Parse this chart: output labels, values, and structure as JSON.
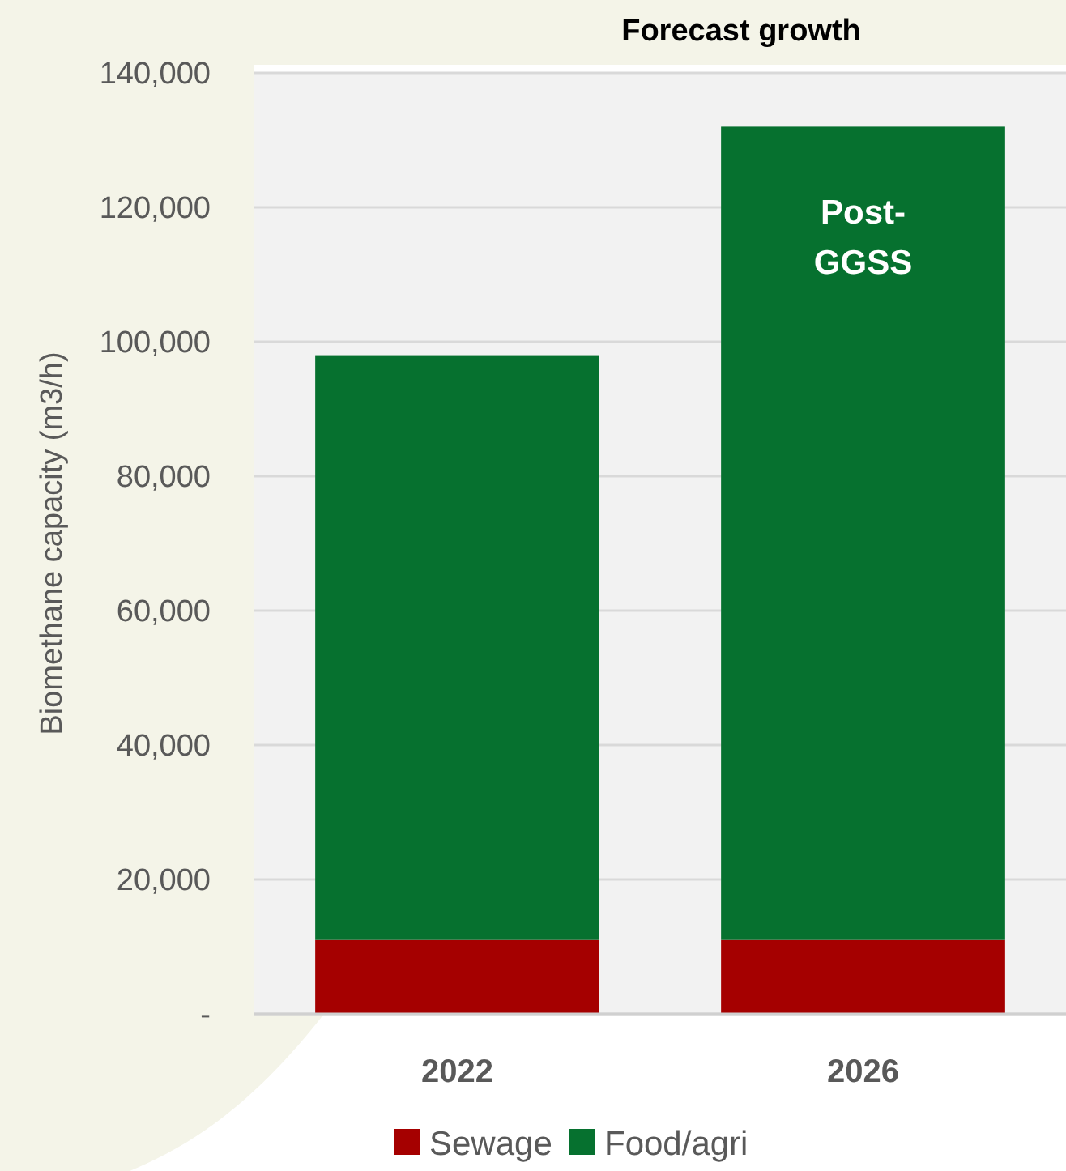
{
  "chart_data": {
    "type": "bar",
    "title": "Forecast growth",
    "ylabel": "Biomethane capacity (m3/h)",
    "categories": [
      "2022",
      "2026"
    ],
    "stacked": true,
    "series": [
      {
        "name": "Sewage",
        "color": "#a50000",
        "values": [
          11000,
          11000
        ]
      },
      {
        "name": "Food/agri",
        "color": "#06712f",
        "values": [
          87000,
          121000
        ]
      }
    ],
    "ylim": [
      0,
      140000
    ],
    "yticks": [
      {
        "value": 0,
        "label": "-"
      },
      {
        "value": 20000,
        "label": "20,000"
      },
      {
        "value": 40000,
        "label": "40,000"
      },
      {
        "value": 60000,
        "label": "60,000"
      },
      {
        "value": 80000,
        "label": "80,000"
      },
      {
        "value": 100000,
        "label": "100,000"
      },
      {
        "value": 120000,
        "label": "120,000"
      },
      {
        "value": 140000,
        "label": "140,000"
      }
    ],
    "grid": "y",
    "legend": "bottom",
    "annotations": [
      "Post-\nGGSS"
    ]
  }
}
